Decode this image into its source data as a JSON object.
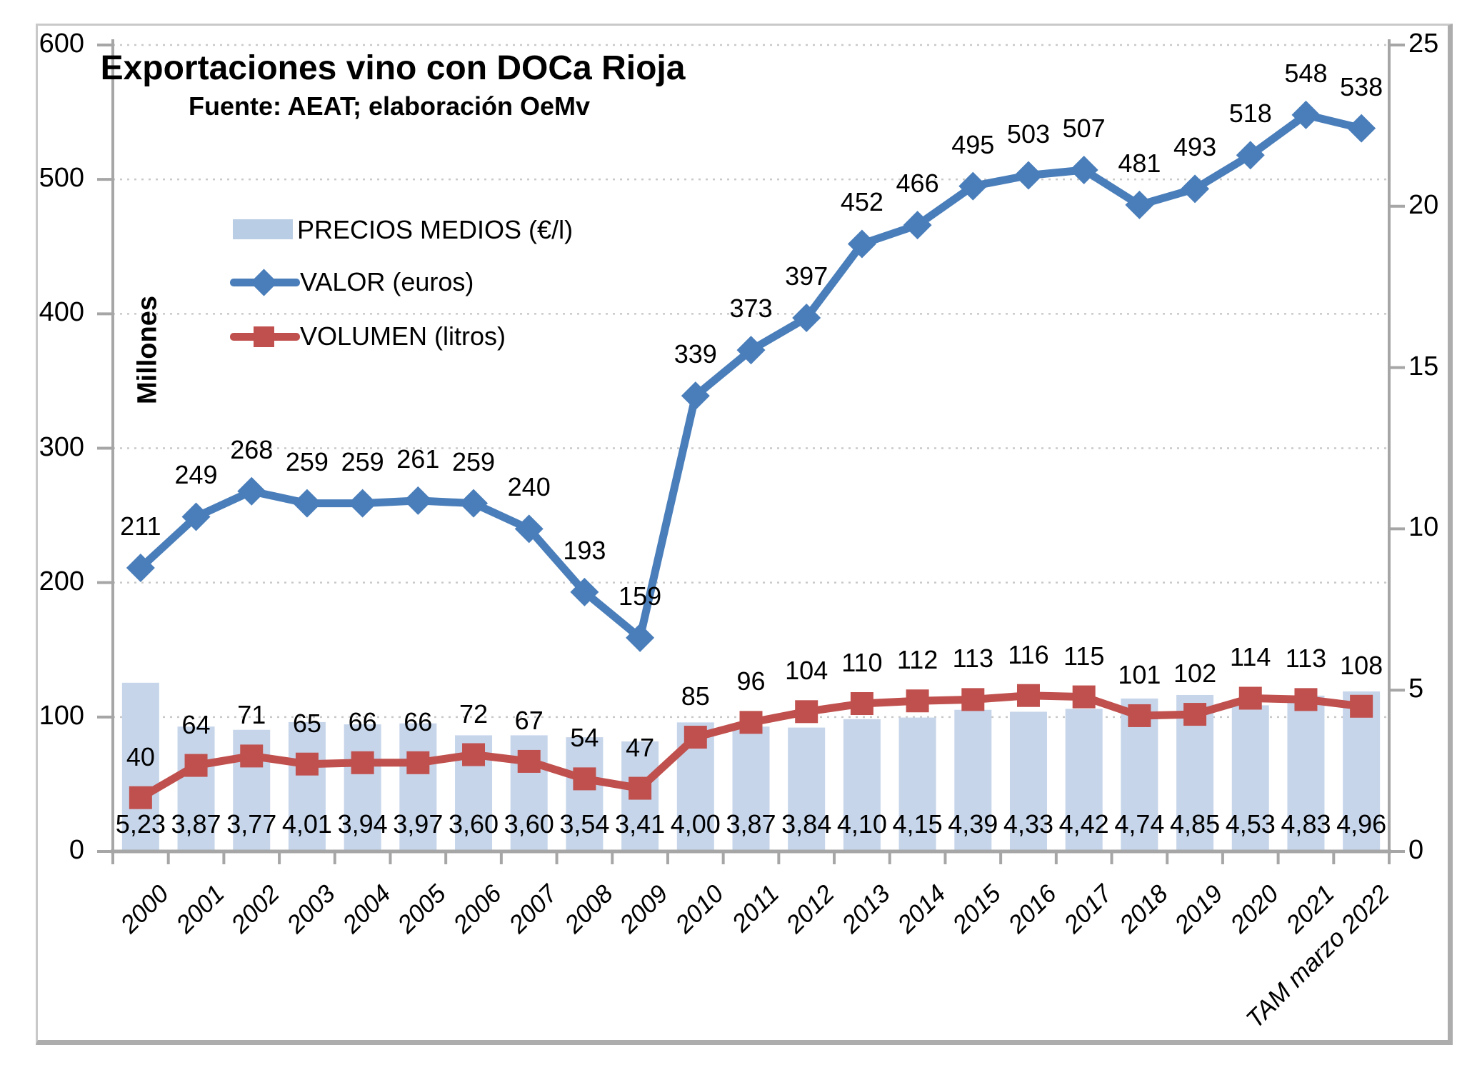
{
  "title": "Exportaciones vino con DOCa Rioja",
  "subtitle": "Fuente: AEAT; elaboración OeMv",
  "left_axis": {
    "title": "Millones",
    "tick_values": [
      0,
      100,
      200,
      300,
      400,
      500,
      600
    ]
  },
  "right_axis": {
    "tick_values": [
      0,
      5,
      10,
      15,
      20,
      25
    ]
  },
  "legend": {
    "items": [
      {
        "label": "PRECIOS MEDIOS (€/l)",
        "type": "bar",
        "color": "#B9CDE4"
      },
      {
        "label": "VALOR (euros)",
        "type": "line-diamond",
        "color": "#4A7EBA"
      },
      {
        "label": "VOLUMEN (litros)",
        "type": "line-square",
        "color": "#C0504D"
      }
    ]
  },
  "colors": {
    "bar": "#C6D5EA",
    "valor": "#4A7EBA",
    "volumen": "#C0504D",
    "gridline": "#C9C9C9",
    "axis": "#A6A6A6"
  },
  "chart_data": {
    "type": "combo",
    "grid": true,
    "legend_position": "inside top-left",
    "left_max": 600,
    "right_max": 25,
    "ylim_left": [
      0,
      600
    ],
    "ylim_right": [
      0,
      25
    ],
    "categories": [
      "2000",
      "2001",
      "2002",
      "2003",
      "2004",
      "2005",
      "2006",
      "2007",
      "2008",
      "2009",
      "2010",
      "2011",
      "2012",
      "2013",
      "2014",
      "2015",
      "2016",
      "2017",
      "2018",
      "2019",
      "2020",
      "2021",
      "TAM marzo 2022"
    ],
    "series": [
      {
        "name": "PRECIOS MEDIOS (€/l)",
        "type": "bar",
        "axis": "right",
        "color": "#C6D5EA",
        "values": [
          5.23,
          3.87,
          3.77,
          4.01,
          3.94,
          3.97,
          3.6,
          3.6,
          3.54,
          3.41,
          4.0,
          3.87,
          3.84,
          4.1,
          4.15,
          4.39,
          4.33,
          4.42,
          4.74,
          4.85,
          4.53,
          4.83,
          4.96
        ],
        "labels": [
          "5,23",
          "3,87",
          "3,77",
          "4,01",
          "3,94",
          "3,97",
          "3,60",
          "3,60",
          "3,54",
          "3,41",
          "4,00",
          "3,87",
          "3,84",
          "4,10",
          "4,15",
          "4,39",
          "4,33",
          "4,42",
          "4,74",
          "4,85",
          "4,53",
          "4,83",
          "4,96"
        ]
      },
      {
        "name": "VALOR (euros)",
        "type": "line",
        "marker": "diamond",
        "axis": "left",
        "color": "#4A7EBA",
        "values": [
          211,
          249,
          268,
          259,
          259,
          261,
          259,
          240,
          193,
          159,
          339,
          373,
          397,
          452,
          466,
          495,
          503,
          507,
          481,
          493,
          518,
          548,
          538
        ]
      },
      {
        "name": "VOLUMEN (litros)",
        "type": "line",
        "marker": "square",
        "axis": "left",
        "color": "#C0504D",
        "values": [
          40,
          64,
          71,
          65,
          66,
          66,
          72,
          67,
          54,
          47,
          85,
          96,
          104,
          110,
          112,
          113,
          116,
          115,
          101,
          102,
          114,
          113,
          108
        ]
      }
    ]
  }
}
